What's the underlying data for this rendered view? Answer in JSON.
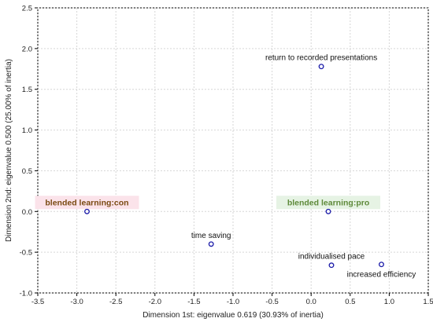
{
  "chart_data": {
    "type": "scatter",
    "xlabel": "Dimension 1st: eigenvalue 0.619 (30.93% of inertia)",
    "ylabel": "Dimension 2nd: eigenvalue 0.500 (25.00% of inertia)",
    "xlim": [
      -3.5,
      1.5
    ],
    "ylim": [
      -1.0,
      2.5
    ],
    "xticks": [
      "-3.5",
      "-3.0",
      "-2.5",
      "-2.0",
      "-1.5",
      "-1.0",
      "-0.5",
      "0.0",
      "0.5",
      "1.0",
      "1.5"
    ],
    "yticks": [
      "-1.0",
      "-0.5",
      "0.0",
      "0.5",
      "1.0",
      "1.5",
      "2.0",
      "2.5"
    ],
    "grid": true,
    "points": [
      {
        "label": "return to recorded presentations",
        "x": 0.13,
        "y": 1.78,
        "label_pos": "above"
      },
      {
        "label": "blended learning:con",
        "x": -2.87,
        "y": 0.0,
        "label_pos": "above",
        "group": true,
        "color": "#7a4a12",
        "highlight": "#fbe3ea"
      },
      {
        "label": "blended learning:pro",
        "x": 0.22,
        "y": 0.0,
        "label_pos": "above",
        "group": true,
        "color": "#5e8a3a",
        "highlight": "#e6f3e4"
      },
      {
        "label": "time saving",
        "x": -1.28,
        "y": -0.4,
        "label_pos": "above"
      },
      {
        "label": "individualised pace",
        "x": 0.26,
        "y": -0.66,
        "label_pos": "above"
      },
      {
        "label": "increased efficiency",
        "x": 0.9,
        "y": -0.65,
        "label_pos": "below"
      }
    ],
    "marker_color": "#1a1aa8"
  }
}
